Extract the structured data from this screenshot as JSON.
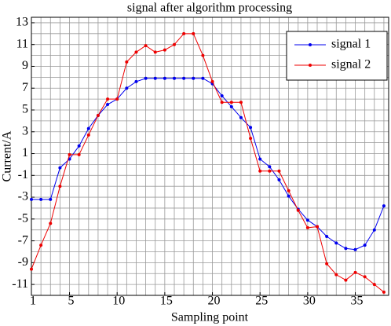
{
  "chart_data": {
    "type": "line",
    "title": "signal after algorithm processing",
    "xlabel": "Sampling point",
    "ylabel": "Current/A",
    "x": [
      1,
      2,
      3,
      4,
      5,
      6,
      7,
      8,
      9,
      10,
      11,
      12,
      13,
      14,
      15,
      16,
      17,
      18,
      19,
      20,
      21,
      22,
      23,
      24,
      25,
      26,
      27,
      28,
      29,
      30,
      31,
      32,
      33,
      34,
      35,
      36,
      37,
      38
    ],
    "series": [
      {
        "name": "signal 1",
        "color": "#0000ee",
        "values": [
          -3.2,
          -3.2,
          -3.2,
          -0.3,
          0.5,
          1.7,
          3.3,
          4.5,
          5.5,
          6.0,
          7.0,
          7.6,
          7.9,
          7.9,
          7.9,
          7.9,
          7.9,
          7.9,
          7.9,
          7.4,
          6.3,
          5.3,
          4.3,
          3.4,
          0.5,
          -0.2,
          -1.4,
          -2.9,
          -4.1,
          -5.1,
          -5.7,
          -6.6,
          -7.2,
          -7.7,
          -7.8,
          -7.4,
          -6.0,
          -3.8
        ]
      },
      {
        "name": "signal 2",
        "color": "#ee0000",
        "values": [
          -9.6,
          -7.4,
          -5.4,
          -2.0,
          0.9,
          0.9,
          2.7,
          4.5,
          6.0,
          6.0,
          9.4,
          10.3,
          10.9,
          10.3,
          10.5,
          11.0,
          12.0,
          12.0,
          10.0,
          7.6,
          5.7,
          5.7,
          5.7,
          2.4,
          -0.6,
          -0.6,
          -0.6,
          -2.4,
          -4.2,
          -5.8,
          -5.7,
          -9.1,
          -10.1,
          -10.6,
          -9.9,
          -10.3,
          -11.0,
          -11.7
        ]
      }
    ],
    "xlim": [
      1,
      38.5
    ],
    "xticks": [
      1,
      5,
      10,
      15,
      20,
      25,
      30,
      35
    ],
    "ylim": [
      -12,
      13.5
    ],
    "yticks": [
      -11,
      -9,
      -7,
      -5,
      -3,
      -1,
      1,
      3,
      5,
      7,
      9,
      11,
      13
    ],
    "grid": true,
    "legend": "upper right"
  }
}
